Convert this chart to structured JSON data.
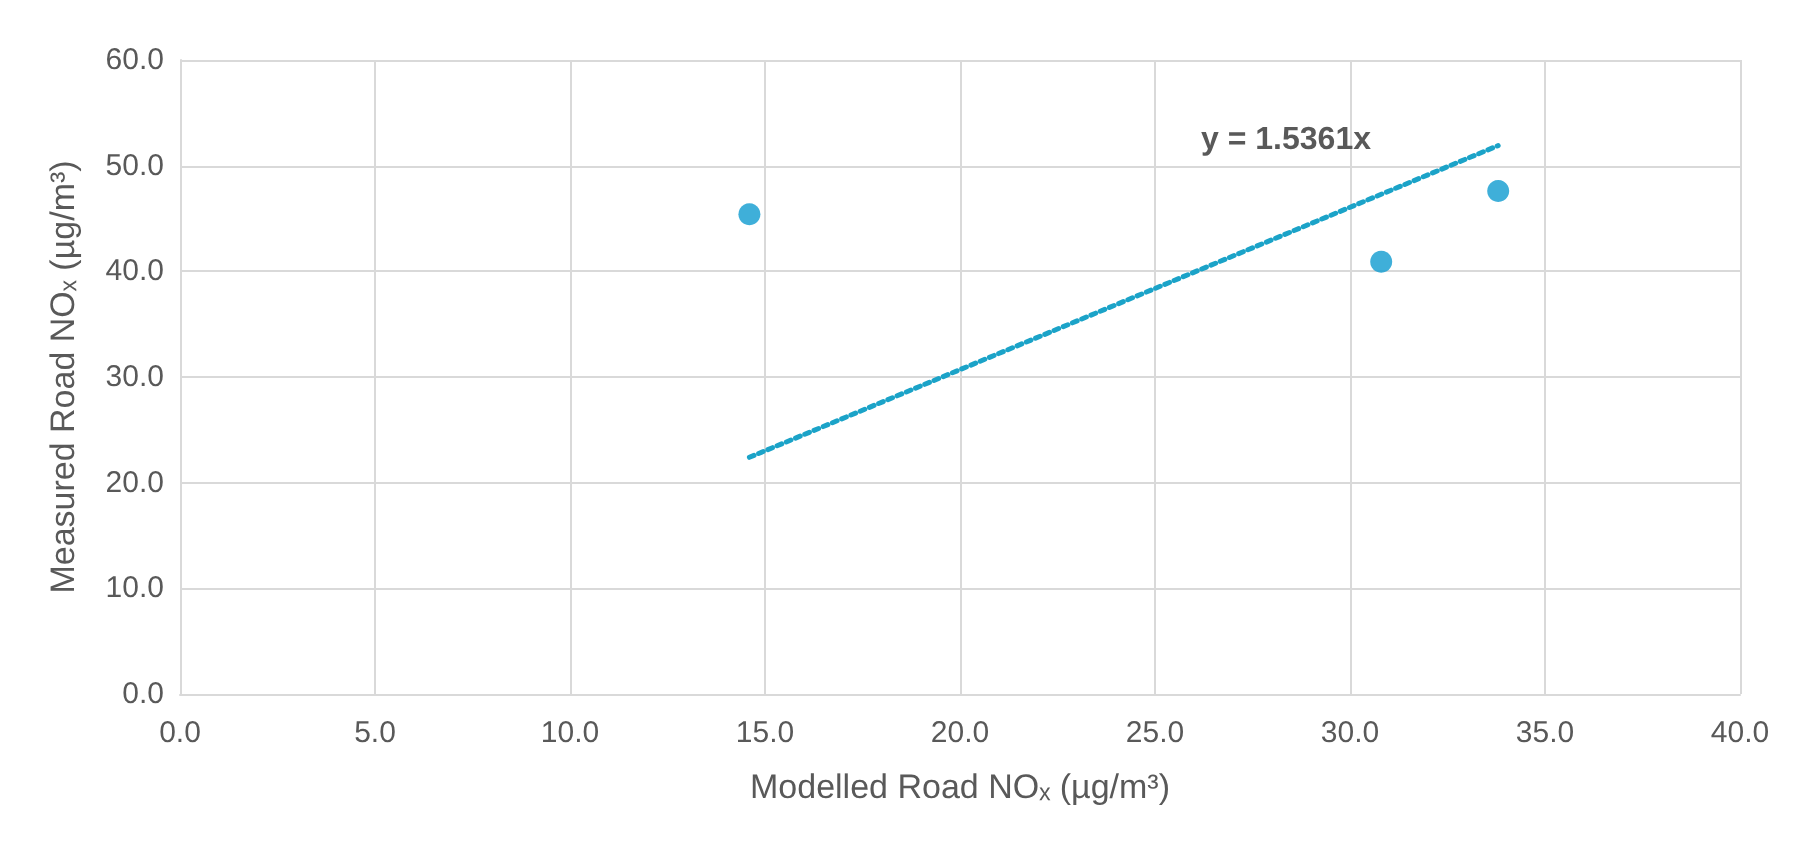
{
  "chart_data": {
    "type": "scatter",
    "xlabel": "Modelled Road NOₓ (µg/m³)",
    "ylabel": "Measured Road NOₓ (µg/m³)",
    "xlim": [
      0,
      40
    ],
    "xticks": [
      {
        "value": 0,
        "label": "0.0"
      },
      {
        "value": 5,
        "label": "5.0"
      },
      {
        "value": 10,
        "label": "10.0"
      },
      {
        "value": 15,
        "label": "15.0"
      },
      {
        "value": 20,
        "label": "20.0"
      },
      {
        "value": 25,
        "label": "25.0"
      },
      {
        "value": 30,
        "label": "30.0"
      },
      {
        "value": 35,
        "label": "35.0"
      },
      {
        "value": 40,
        "label": "40.0"
      }
    ],
    "ylim": [
      0,
      60
    ],
    "yticks": [
      {
        "value": 0,
        "label": "0.0"
      },
      {
        "value": 10,
        "label": "10.0"
      },
      {
        "value": 20,
        "label": "20.0"
      },
      {
        "value": 30,
        "label": "30.0"
      },
      {
        "value": 40,
        "label": "40.0"
      },
      {
        "value": 50,
        "label": "50.0"
      },
      {
        "value": 60,
        "label": "60.0"
      }
    ],
    "grid": true,
    "marker": "circle",
    "series": [
      {
        "color": "#0f9bd0",
        "x": [
          14.6,
          30.8,
          33.8
        ],
        "values": [
          45.4,
          40.9,
          47.6
        ]
      },
      {
        "type": "line",
        "color": "#1ba3c8",
        "x": [
          14.6,
          33.8
        ],
        "values": [
          22.4,
          51.9
        ],
        "line_style": "dotted",
        "marker": "none"
      }
    ],
    "annotations": [
      "y = 1.5361x"
    ]
  }
}
